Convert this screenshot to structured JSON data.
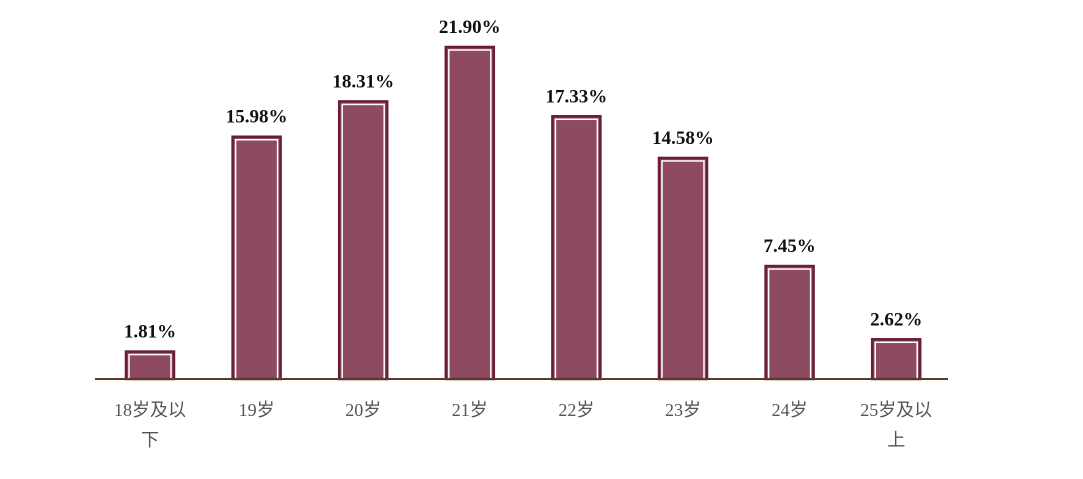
{
  "chart_data": {
    "type": "bar",
    "categories": [
      "18岁及以下",
      "19岁",
      "20岁",
      "21岁",
      "22岁",
      "23岁",
      "24岁",
      "25岁及以上"
    ],
    "values": [
      1.81,
      15.98,
      18.31,
      21.9,
      17.33,
      14.58,
      7.45,
      2.62
    ],
    "value_labels": [
      "1.81%",
      "15.98%",
      "18.31%",
      "21.90%",
      "17.33%",
      "14.58%",
      "7.45%",
      "2.62%"
    ],
    "color": "#8e4a60"
  }
}
